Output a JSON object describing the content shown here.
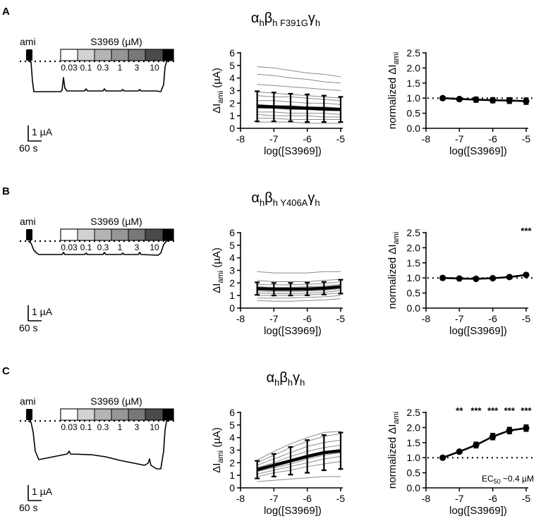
{
  "panels": [
    {
      "letter": "A",
      "title": {
        "base": "α",
        "sub1": "h",
        "b": "β",
        "sub2": "h F391G",
        "g": "γ",
        "sub3": "h"
      },
      "trace": {
        "ami_label": "ami",
        "compound_label": "S3969 (µM)",
        "concentrations": [
          "0.03",
          "0.1",
          "0.3",
          "1",
          "3",
          "10"
        ],
        "scale_current": "1 µA",
        "scale_time": "60 s"
      },
      "asterisks": [],
      "ec50_label": ""
    },
    {
      "letter": "B",
      "title": {
        "base": "α",
        "sub1": "h",
        "b": "β",
        "sub2": "h Y406A",
        "g": "γ",
        "sub3": "h"
      },
      "trace": {
        "ami_label": "ami",
        "compound_label": "S3969 (µM)",
        "concentrations": [
          "0.03",
          "0.1",
          "0.3",
          "1",
          "3",
          "10"
        ],
        "scale_current": "1 µA",
        "scale_time": "60 s"
      },
      "asterisks": [
        {
          "x": -5,
          "text": "***"
        }
      ],
      "ec50_label": ""
    },
    {
      "letter": "C",
      "title": {
        "base": "α",
        "sub1": "h",
        "b": "β",
        "sub2": "h",
        "g": "γ",
        "sub3": "h"
      },
      "trace": {
        "ami_label": "ami",
        "compound_label": "S3969 (µM)",
        "concentrations": [
          "0.03",
          "0.1",
          "0.3",
          "1",
          "3",
          "10"
        ],
        "scale_current": "1 µA",
        "scale_time": "60 s"
      },
      "asterisks": [
        {
          "x": -7,
          "text": "**"
        },
        {
          "x": -6.5,
          "text": "***"
        },
        {
          "x": -6,
          "text": "***"
        },
        {
          "x": -5.5,
          "text": "***"
        },
        {
          "x": -5,
          "text": "***"
        }
      ],
      "ec50_label": "EC50 ~0.4 µM"
    }
  ],
  "chart_data": [
    {
      "panel": "A",
      "type": "line",
      "kind": "absolute",
      "xlabel": "log([S3969])",
      "ylabel": "ΔIami (µA)",
      "xlim": [
        -8,
        -5
      ],
      "ylim": [
        0,
        6
      ],
      "xticks": [
        -8,
        -7,
        -6,
        -5
      ],
      "yticks": [
        0,
        1,
        2,
        3,
        4,
        5,
        6
      ],
      "x": [
        -7.5,
        -7,
        -6.5,
        -6,
        -5.5,
        -5
      ],
      "mean": {
        "y": [
          1.75,
          1.7,
          1.65,
          1.6,
          1.55,
          1.5
        ],
        "err": [
          1.2,
          1.15,
          1.1,
          1.1,
          1.05,
          1.0
        ]
      },
      "individual": [
        [
          4.9,
          4.8,
          4.6,
          4.4,
          4.3,
          4.1
        ],
        [
          4.3,
          4.2,
          4.0,
          3.9,
          3.7,
          3.6
        ],
        [
          3.5,
          3.4,
          3.3,
          3.2,
          3.1,
          3.0
        ],
        [
          2.9,
          2.8,
          2.7,
          2.6,
          2.5,
          2.4
        ],
        [
          2.6,
          2.5,
          2.5,
          2.4,
          2.3,
          2.2
        ],
        [
          2.2,
          2.2,
          2.1,
          2.0,
          2.0,
          1.9
        ],
        [
          1.9,
          1.8,
          1.8,
          1.7,
          1.7,
          1.6
        ],
        [
          1.6,
          1.6,
          1.5,
          1.5,
          1.4,
          1.4
        ],
        [
          1.3,
          1.3,
          1.2,
          1.2,
          1.2,
          1.1
        ],
        [
          1.1,
          1.0,
          1.0,
          1.0,
          0.9,
          0.9
        ],
        [
          0.8,
          0.8,
          0.7,
          0.7,
          0.7,
          0.7
        ],
        [
          0.5,
          0.5,
          0.5,
          0.4,
          0.4,
          0.4
        ]
      ]
    },
    {
      "panel": "A",
      "type": "line",
      "kind": "normalized",
      "xlabel": "log([S3969])",
      "ylabel": "normalized ΔIami",
      "xlim": [
        -8,
        -5
      ],
      "ylim": [
        0,
        2.5
      ],
      "xticks": [
        -8,
        -7,
        -6,
        -5
      ],
      "yticks": [
        0.0,
        0.5,
        1.0,
        1.5,
        2.0,
        2.5
      ],
      "reference_line": 1.0,
      "x": [
        -7.5,
        -7,
        -6.5,
        -6,
        -5.5,
        -5
      ],
      "y": [
        1.0,
        0.97,
        0.95,
        0.93,
        0.92,
        0.9
      ],
      "err": [
        0.02,
        0.05,
        0.08,
        0.08,
        0.09,
        0.1
      ]
    },
    {
      "panel": "B",
      "type": "line",
      "kind": "absolute",
      "xlabel": "log([S3969])",
      "ylabel": "ΔIami (µA)",
      "xlim": [
        -8,
        -5
      ],
      "ylim": [
        0,
        6
      ],
      "xticks": [
        -8,
        -7,
        -6,
        -5
      ],
      "yticks": [
        0,
        1,
        2,
        3,
        4,
        5,
        6
      ],
      "x": [
        -7.5,
        -7,
        -6.5,
        -6,
        -5.5,
        -5
      ],
      "mean": {
        "y": [
          1.55,
          1.5,
          1.5,
          1.52,
          1.58,
          1.7
        ],
        "err": [
          0.5,
          0.5,
          0.5,
          0.5,
          0.5,
          0.55
        ]
      },
      "individual": [
        [
          2.9,
          2.8,
          2.8,
          2.8,
          2.9,
          2.9
        ],
        [
          2.2,
          2.1,
          2.1,
          2.1,
          2.2,
          2.3
        ],
        [
          1.9,
          1.85,
          1.85,
          1.9,
          1.95,
          2.1
        ],
        [
          1.7,
          1.65,
          1.65,
          1.7,
          1.75,
          1.9
        ],
        [
          1.5,
          1.45,
          1.45,
          1.5,
          1.55,
          1.7
        ],
        [
          1.35,
          1.3,
          1.3,
          1.35,
          1.4,
          1.55
        ],
        [
          1.2,
          1.15,
          1.15,
          1.2,
          1.25,
          1.4
        ],
        [
          1.0,
          1.0,
          1.0,
          1.05,
          1.1,
          1.2
        ],
        [
          0.8,
          0.8,
          0.8,
          0.85,
          0.9,
          1.0
        ],
        [
          0.6,
          0.55,
          0.55,
          0.6,
          0.65,
          0.75
        ]
      ]
    },
    {
      "panel": "B",
      "type": "line",
      "kind": "normalized",
      "xlabel": "log([S3969])",
      "ylabel": "normalized ΔIami",
      "xlim": [
        -8,
        -5
      ],
      "ylim": [
        0,
        2.5
      ],
      "xticks": [
        -8,
        -7,
        -6,
        -5
      ],
      "yticks": [
        0.0,
        0.5,
        1.0,
        1.5,
        2.0,
        2.5
      ],
      "reference_line": 1.0,
      "x": [
        -7.5,
        -7,
        -6.5,
        -6,
        -5.5,
        -5
      ],
      "y": [
        1.0,
        0.98,
        0.97,
        0.99,
        1.03,
        1.1
      ],
      "err": [
        0.02,
        0.03,
        0.03,
        0.04,
        0.04,
        0.05
      ]
    },
    {
      "panel": "C",
      "type": "line",
      "kind": "absolute",
      "xlabel": "log([S3969])",
      "ylabel": "ΔIami (µA)",
      "xlim": [
        -8,
        -5
      ],
      "ylim": [
        0,
        6
      ],
      "xticks": [
        -8,
        -7,
        -6,
        -5
      ],
      "yticks": [
        0,
        1,
        2,
        3,
        4,
        5,
        6
      ],
      "x": [
        -7.5,
        -7,
        -6.5,
        -6,
        -5.5,
        -5
      ],
      "mean": {
        "y": [
          1.45,
          1.8,
          2.15,
          2.5,
          2.8,
          2.95
        ],
        "err": [
          0.7,
          0.9,
          1.1,
          1.3,
          1.4,
          1.45
        ]
      },
      "individual": [
        [
          2.2,
          2.9,
          3.5,
          4.0,
          4.4,
          4.5
        ],
        [
          2.0,
          2.6,
          3.2,
          3.7,
          4.1,
          4.3
        ],
        [
          1.8,
          2.3,
          2.8,
          3.3,
          3.6,
          3.8
        ],
        [
          1.6,
          2.0,
          2.5,
          2.9,
          3.2,
          3.4
        ],
        [
          1.4,
          1.8,
          2.2,
          2.6,
          2.9,
          3.0
        ],
        [
          1.3,
          1.6,
          1.9,
          2.3,
          2.6,
          2.8
        ],
        [
          1.1,
          1.4,
          1.7,
          2.0,
          2.3,
          2.5
        ],
        [
          0.9,
          1.2,
          1.4,
          1.7,
          1.9,
          2.1
        ],
        [
          0.5,
          0.6,
          0.7,
          0.8,
          0.9,
          0.9
        ]
      ]
    },
    {
      "panel": "C",
      "type": "line",
      "kind": "normalized",
      "xlabel": "log([S3969])",
      "ylabel": "normalized ΔIami",
      "xlim": [
        -8,
        -5
      ],
      "ylim": [
        0,
        2.5
      ],
      "xticks": [
        -8,
        -7,
        -6,
        -5
      ],
      "yticks": [
        0.0,
        0.5,
        1.0,
        1.5,
        2.0,
        2.5
      ],
      "reference_line": 1.0,
      "x": [
        -7.5,
        -7,
        -6.5,
        -6,
        -5.5,
        -5
      ],
      "y": [
        1.0,
        1.2,
        1.42,
        1.7,
        1.9,
        1.98
      ],
      "err": [
        0.02,
        0.04,
        0.09,
        0.1,
        0.1,
        0.1
      ]
    }
  ]
}
